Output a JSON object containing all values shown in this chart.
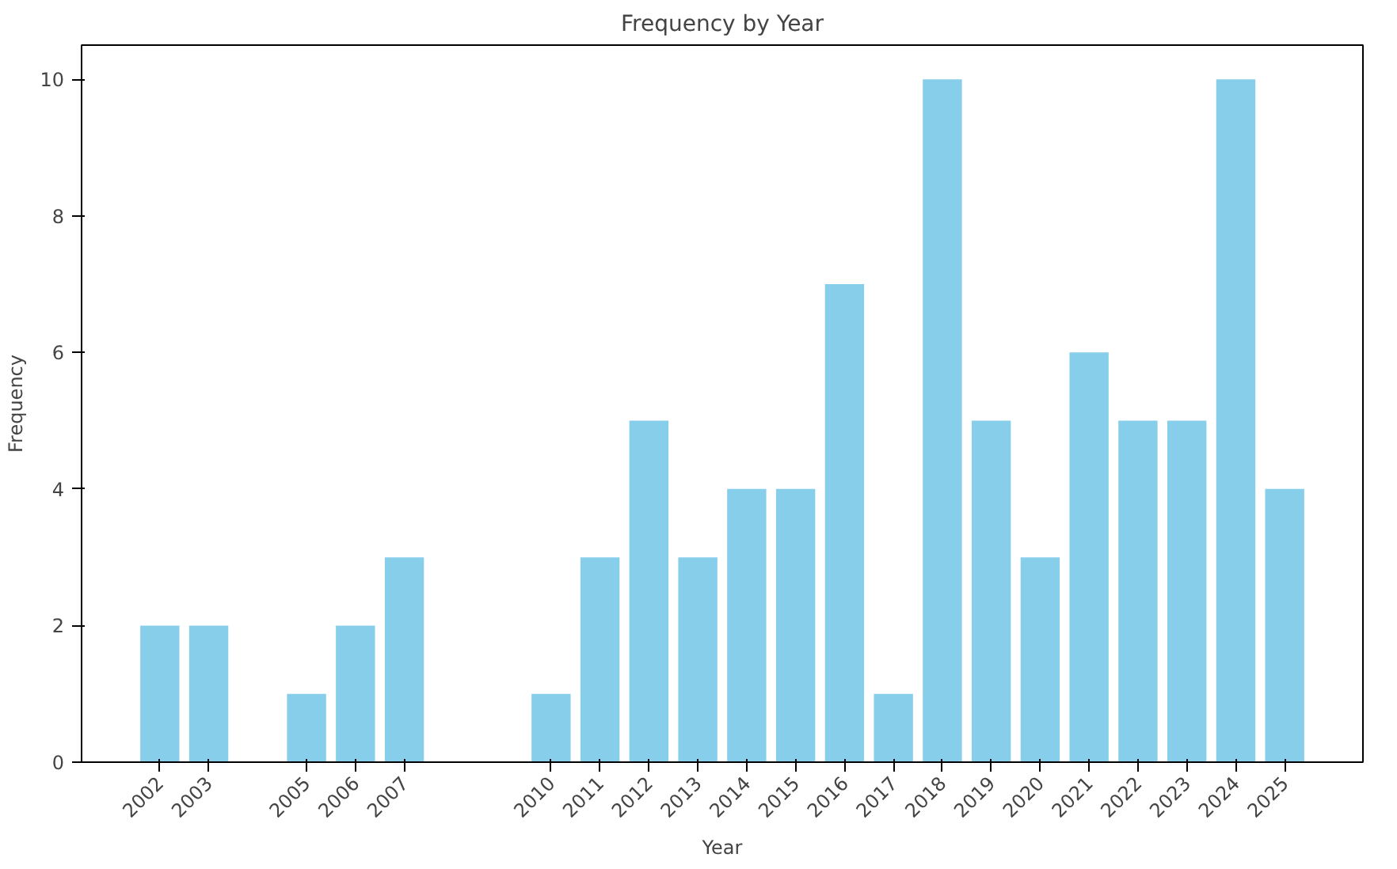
{
  "chart_data": {
    "type": "bar",
    "title": "Frequency by Year",
    "xlabel": "Year",
    "ylabel": "Frequency",
    "x": [
      2002,
      2003,
      2005,
      2006,
      2007,
      2010,
      2011,
      2012,
      2013,
      2014,
      2015,
      2016,
      2017,
      2018,
      2019,
      2020,
      2021,
      2022,
      2023,
      2024,
      2025
    ],
    "values": [
      2,
      2,
      1,
      2,
      3,
      1,
      3,
      5,
      3,
      4,
      4,
      7,
      1,
      10,
      5,
      3,
      6,
      5,
      5,
      10,
      4
    ],
    "color": "#87ceeb",
    "xlim": [
      2000.4,
      2026.6
    ],
    "xticks": [
      2002,
      2003,
      2005,
      2006,
      2007,
      2010,
      2011,
      2012,
      2013,
      2014,
      2015,
      2016,
      2017,
      2018,
      2019,
      2020,
      2021,
      2022,
      2023,
      2024,
      2025
    ],
    "ylim": [
      0,
      10.5
    ],
    "yticks": [
      0,
      2,
      4,
      6,
      8,
      10
    ],
    "grid": false
  }
}
